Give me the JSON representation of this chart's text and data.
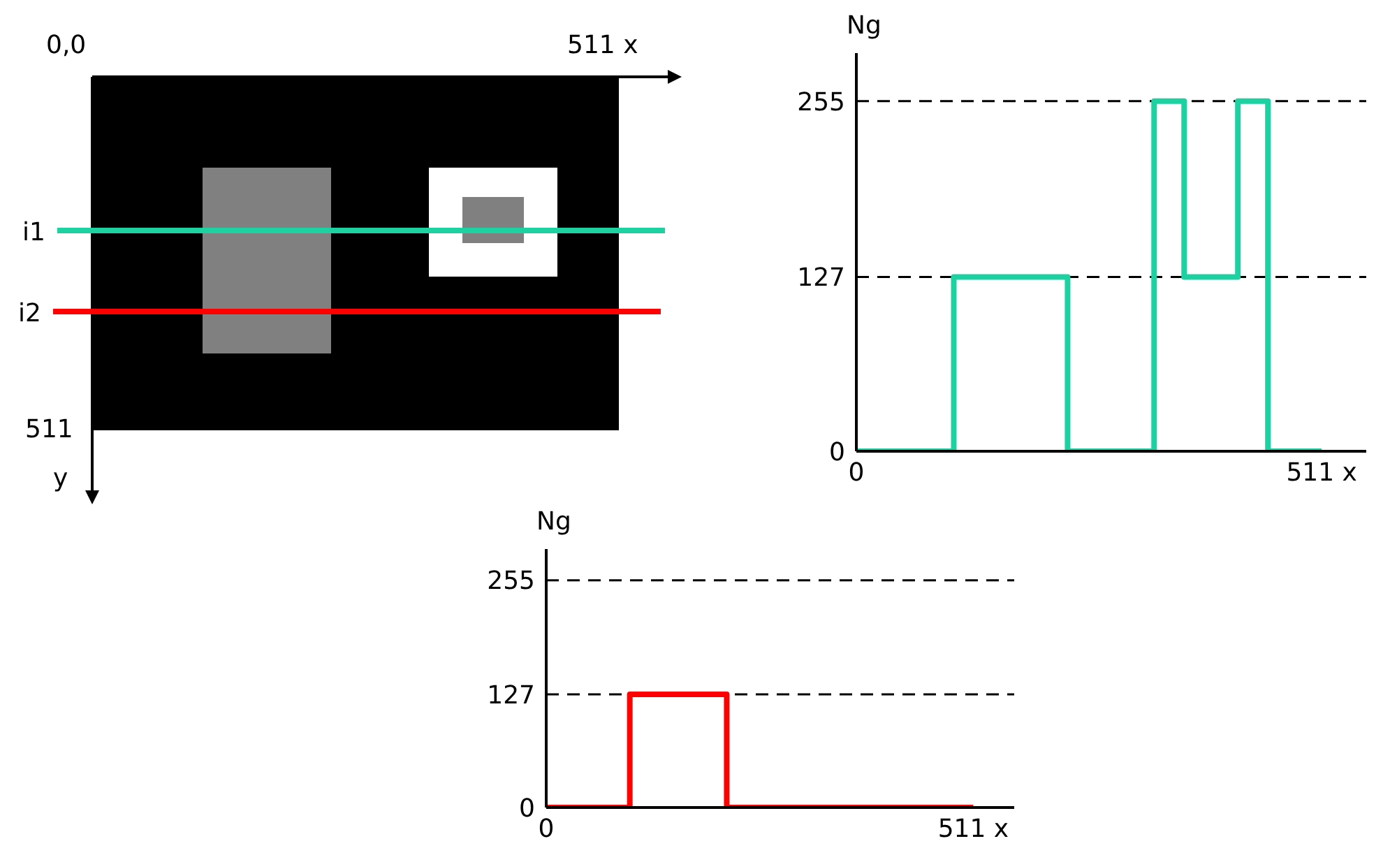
{
  "chart_data": [
    {
      "type": "other",
      "annotations": [
        "0,0",
        "511 x",
        "i1",
        "i2",
        "511",
        "y"
      ]
    },
    {
      "type": "step",
      "ylabel": "Ng",
      "x": [
        0,
        107,
        232,
        327,
        360,
        419,
        452,
        511
      ],
      "xlim": [
        0,
        560
      ],
      "xticks": [
        0,
        {
          "value": 511,
          "label": "511 x"
        }
      ],
      "ylim": [
        0,
        290
      ],
      "yticks": [
        0,
        127,
        255
      ],
      "grid": "y",
      "line_style": "solid",
      "series": [
        {
          "color": "#1dd1a1",
          "values": [
            0,
            127,
            0,
            255,
            127,
            255,
            0,
            0
          ]
        }
      ]
    },
    {
      "type": "step",
      "ylabel": "Ng",
      "x": [
        0,
        100,
        216,
        511
      ],
      "xlim": [
        0,
        560
      ],
      "xticks": [
        0,
        {
          "value": 511,
          "label": "511 x"
        }
      ],
      "ylim": [
        0,
        290
      ],
      "yticks": [
        0,
        127,
        255
      ],
      "grid": "y",
      "line_style": "solid",
      "series": [
        {
          "color": "#ff0000",
          "values": [
            0,
            127,
            0,
            0
          ]
        }
      ]
    }
  ]
}
